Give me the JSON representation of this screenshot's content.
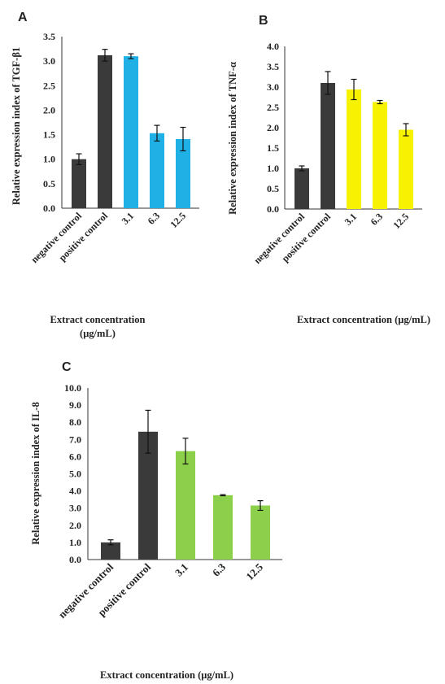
{
  "chart_data": [
    {
      "panel": "A",
      "type": "bar",
      "ylabel": "Relative expression index of TGF-β1",
      "xlabel_lines": [
        "Extract concentration",
        "(μg/mL)"
      ],
      "categories": [
        "negative control",
        "positive control",
        "3.1",
        "6.3",
        "12.5"
      ],
      "values": [
        1.0,
        3.12,
        3.1,
        1.53,
        1.41
      ],
      "errors": [
        0.11,
        0.12,
        0.05,
        0.16,
        0.24
      ],
      "colors": [
        "#3a3a3a",
        "#3a3a3a",
        "#1fb0e6",
        "#1fb0e6",
        "#1fb0e6"
      ],
      "ylim": [
        0,
        3.5
      ],
      "yticks": [
        "0.0",
        "0.5",
        "1.0",
        "1.5",
        "2.0",
        "2.5",
        "3.0",
        "3.5"
      ],
      "grid": false
    },
    {
      "panel": "B",
      "type": "bar",
      "ylabel": "Relative expression index of TNF-α",
      "xlabel_lines": [
        "Extract concentration (μg/mL)"
      ],
      "categories": [
        "negative control",
        "positive control",
        "3.1",
        "6.3",
        "12.5"
      ],
      "values": [
        1.0,
        3.1,
        2.94,
        2.63,
        1.95
      ],
      "errors": [
        0.06,
        0.28,
        0.25,
        0.04,
        0.15
      ],
      "colors": [
        "#3a3a3a",
        "#3a3a3a",
        "#f6f200",
        "#f6f200",
        "#f6f200"
      ],
      "ylim": [
        0,
        4.0
      ],
      "yticks": [
        "0.0",
        "0.5",
        "1.0",
        "1.5",
        "2.0",
        "2.5",
        "3.0",
        "3.5",
        "4.0"
      ],
      "grid": false
    },
    {
      "panel": "C",
      "type": "bar",
      "ylabel": "Relative expression index of IL-8",
      "xlabel_lines": [
        "Extract concentration (μg/mL)"
      ],
      "categories": [
        "negative control",
        "positive control",
        "3.1",
        "6.3",
        "12.5"
      ],
      "values": [
        1.0,
        7.45,
        6.32,
        3.75,
        3.15
      ],
      "errors": [
        0.15,
        1.25,
        0.75,
        0.03,
        0.28
      ],
      "colors": [
        "#3a3a3a",
        "#3a3a3a",
        "#8ccf4b",
        "#8ccf4b",
        "#8ccf4b"
      ],
      "ylim": [
        0,
        10.0
      ],
      "yticks": [
        "0.0",
        "1.0",
        "2.0",
        "3.0",
        "4.0",
        "5.0",
        "6.0",
        "7.0",
        "8.0",
        "9.0",
        "10.0"
      ],
      "grid": false
    }
  ]
}
